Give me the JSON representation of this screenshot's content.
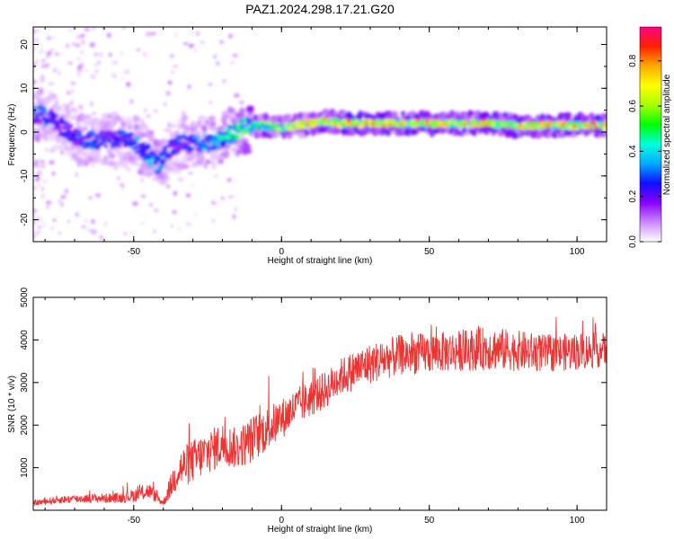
{
  "page": {
    "title": "PAZ1.2024.298.17.21.G20"
  },
  "chart_data": [
    {
      "type": "heatmap",
      "title": "PAZ1.2024.298.17.21.G20",
      "xlabel": "Height of straight line (km)",
      "ylabel": "Frequency (Hz)",
      "xlim": [
        -84,
        110
      ],
      "ylim": [
        -25,
        24
      ],
      "x_ticks": [
        -50,
        0,
        50,
        100
      ],
      "y_ticks": [
        -20,
        -10,
        0,
        10,
        20
      ],
      "colorbar": {
        "label": "Normalized spectral amplitude",
        "range": [
          0,
          0.95
        ],
        "ticks": [
          0.0,
          0.2,
          0.4,
          0.6,
          0.8
        ],
        "colors": [
          "#ffffff",
          "#cc88ff",
          "#8800ff",
          "#1010ff",
          "#00aaff",
          "#00ffdd",
          "#00ff00",
          "#aaff00",
          "#ffff00",
          "#ffaa00",
          "#ff2200",
          "#ff0088"
        ]
      },
      "ridge": {
        "x": [
          -82,
          -78,
          -74,
          -70,
          -66,
          -60,
          -55,
          -50,
          -45,
          -42,
          -40,
          -37,
          -34,
          -30,
          -25,
          -20,
          -17,
          -14,
          -10,
          -5,
          0,
          5,
          10,
          15,
          20,
          30,
          40,
          50,
          60,
          70,
          80,
          90,
          100,
          110
        ],
        "frequency": [
          4,
          3,
          1,
          -1,
          -2,
          -1.5,
          -1.5,
          -2.5,
          -5,
          -7.5,
          -6,
          -3.5,
          -2.5,
          -2.5,
          -2.5,
          -1.5,
          -0.5,
          1,
          1.5,
          1.5,
          1,
          1.5,
          2,
          2.5,
          2,
          2,
          2,
          2,
          2,
          2,
          1.5,
          1.5,
          1.5,
          1.5
        ],
        "amplitude": [
          0.35,
          0.3,
          0.25,
          0.3,
          0.35,
          0.3,
          0.3,
          0.35,
          0.4,
          0.4,
          0.35,
          0.3,
          0.3,
          0.35,
          0.4,
          0.45,
          0.5,
          0.55,
          0.6,
          0.65,
          0.7,
          0.7,
          0.75,
          0.8,
          0.85,
          0.85,
          0.85,
          0.85,
          0.85,
          0.85,
          0.85,
          0.85,
          0.85,
          0.85
        ]
      }
    },
    {
      "type": "line",
      "xlabel": "Height of straight line (km)",
      "ylabel": "SNR (10 * v/v)",
      "xlim": [
        -84,
        110
      ],
      "ylim": [
        0,
        5000
      ],
      "x_ticks": [
        -50,
        0,
        50,
        100
      ],
      "y_ticks": [
        1000,
        2000,
        3000,
        4000,
        5000
      ],
      "series": [
        {
          "color": "#ee3333",
          "x": [
            -84,
            -75,
            -65,
            -55,
            -50,
            -45,
            -40,
            -35,
            -30,
            -25,
            -20,
            -15,
            -10,
            -5,
            0,
            5,
            10,
            15,
            20,
            25,
            30,
            35,
            40,
            50,
            60,
            70,
            80,
            90,
            100,
            110
          ],
          "baseline": [
            150,
            220,
            250,
            250,
            300,
            400,
            150,
            800,
            1000,
            1200,
            1400,
            1300,
            1500,
            1750,
            2000,
            2300,
            2500,
            2700,
            3000,
            3150,
            3300,
            3400,
            3500,
            3550,
            3600,
            3650,
            3600,
            3550,
            3600,
            3650
          ],
          "noise": [
            80,
            120,
            130,
            150,
            200,
            250,
            100,
            600,
            650,
            650,
            650,
            600,
            700,
            650,
            600,
            550,
            550,
            550,
            550,
            600,
            600,
            600,
            600,
            600,
            600,
            650,
            600,
            550,
            550,
            500
          ]
        }
      ]
    }
  ]
}
